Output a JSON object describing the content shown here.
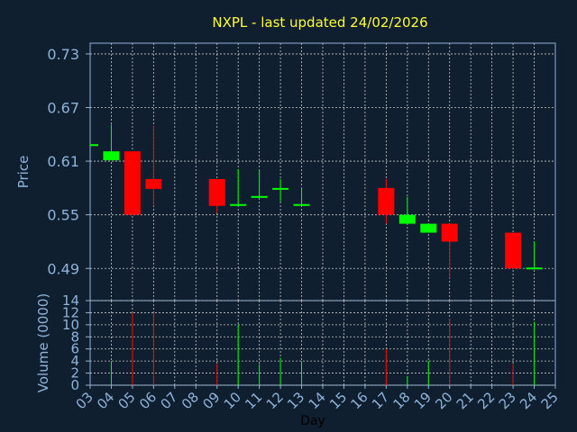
{
  "chart_data": {
    "type": "candlestick",
    "title": "NXPL - last updated 24/02/2026",
    "xlabel": "Day",
    "price_panel": {
      "ylabel": "Price",
      "ylim": [
        0.454,
        0.742
      ],
      "yticks": [
        0.73,
        0.67,
        0.61,
        0.55,
        0.49
      ],
      "ytick_labels": [
        "0.73",
        "0.67",
        "0.61",
        "0.55",
        "0.49"
      ],
      "grid": true
    },
    "volume_panel": {
      "ylabel": "Volume (0000)",
      "ylim": [
        0,
        14
      ],
      "yticks": [
        0,
        2,
        4,
        6,
        8,
        10,
        12,
        14
      ],
      "ytick_labels": [
        "0",
        "2",
        "4",
        "6",
        "8",
        "10",
        "12",
        "14"
      ],
      "grid": true
    },
    "x_ticks": [
      "03",
      "04",
      "05",
      "06",
      "07",
      "08",
      "09",
      "10",
      "11",
      "12",
      "13",
      "14",
      "15",
      "16",
      "17",
      "18",
      "19",
      "20",
      "21",
      "22",
      "23",
      "24",
      "25"
    ],
    "candles": [
      {
        "day": "03",
        "open": 0.628,
        "close": 0.629,
        "high": 0.629,
        "low": 0.628,
        "volume": 0
      },
      {
        "day": "04",
        "open": 0.611,
        "close": 0.621,
        "high": 0.651,
        "low": 0.611,
        "volume": 4
      },
      {
        "day": "05",
        "open": 0.621,
        "close": 0.55,
        "high": 0.621,
        "low": 0.55,
        "volume": 12
      },
      {
        "day": "06",
        "open": 0.59,
        "close": 0.579,
        "high": 0.65,
        "low": 0.56,
        "volume": 12
      },
      {
        "day": "09",
        "open": 0.59,
        "close": 0.56,
        "high": 0.59,
        "low": 0.552,
        "volume": 3.5
      },
      {
        "day": "10",
        "open": 0.56,
        "close": 0.562,
        "high": 0.601,
        "low": 0.56,
        "volume": 10
      },
      {
        "day": "11",
        "open": 0.57,
        "close": 0.571,
        "high": 0.6,
        "low": 0.57,
        "volume": 3.5
      },
      {
        "day": "12",
        "open": 0.578,
        "close": 0.58,
        "high": 0.59,
        "low": 0.565,
        "volume": 4.5
      },
      {
        "day": "13",
        "open": 0.56,
        "close": 0.562,
        "high": 0.58,
        "low": 0.56,
        "volume": 4
      },
      {
        "day": "17",
        "open": 0.58,
        "close": 0.55,
        "high": 0.59,
        "low": 0.54,
        "volume": 6
      },
      {
        "day": "18",
        "open": 0.54,
        "close": 0.55,
        "high": 0.57,
        "low": 0.54,
        "volume": 1.5
      },
      {
        "day": "19",
        "open": 0.53,
        "close": 0.54,
        "high": 0.54,
        "low": 0.53,
        "volume": 4
      },
      {
        "day": "20",
        "open": 0.54,
        "close": 0.52,
        "high": 0.54,
        "low": 0.479,
        "volume": 11
      },
      {
        "day": "23",
        "open": 0.53,
        "close": 0.49,
        "high": 0.53,
        "low": 0.49,
        "volume": 3.5
      },
      {
        "day": "24",
        "open": 0.49,
        "close": 0.491,
        "high": 0.52,
        "low": 0.49,
        "volume": 10.5
      }
    ],
    "colors": {
      "background": "#0f1f30",
      "panel_border": "#8fb3d9",
      "grid": "#c8c8c8",
      "text": "#8fb3d9",
      "title": "#ffff33",
      "up": "#00ff00",
      "down": "#ff0000"
    }
  }
}
